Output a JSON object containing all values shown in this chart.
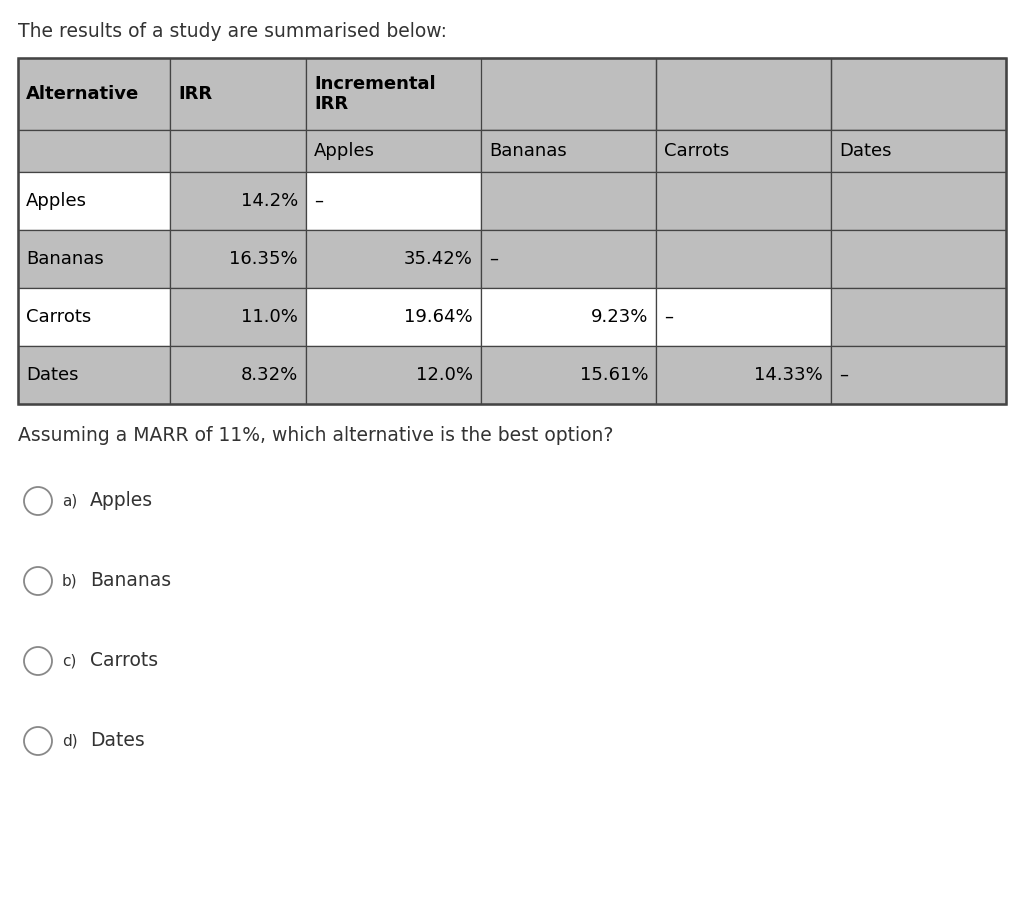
{
  "title": "The results of a study are summarised below:",
  "question": "Assuming a MARR of 11%, which alternative is the best option?",
  "options": [
    {
      "label": "a)",
      "text": "Apples"
    },
    {
      "label": "b)",
      "text": "Bananas"
    },
    {
      "label": "c)",
      "text": "Carrots"
    },
    {
      "label": "d)",
      "text": "Dates"
    }
  ],
  "table": {
    "rows": [
      [
        "Apples",
        "14.2%",
        "–",
        "",
        "",
        ""
      ],
      [
        "Bananas",
        "16.35%",
        "35.42%",
        "–",
        "",
        ""
      ],
      [
        "Carrots",
        "11.0%",
        "19.64%",
        "9.23%",
        "–",
        ""
      ],
      [
        "Dates",
        "8.32%",
        "12.0%",
        "15.61%",
        "14.33%",
        "–"
      ]
    ],
    "header_bg": "#BEBEBE",
    "row_bg_even": "#FFFFFF",
    "row_bg_odd": "#BEBEBE",
    "border_color": "#444444",
    "text_color": "#000000"
  },
  "bg_color": "#FFFFFF",
  "title_color": "#333333",
  "option_color": "#333333"
}
